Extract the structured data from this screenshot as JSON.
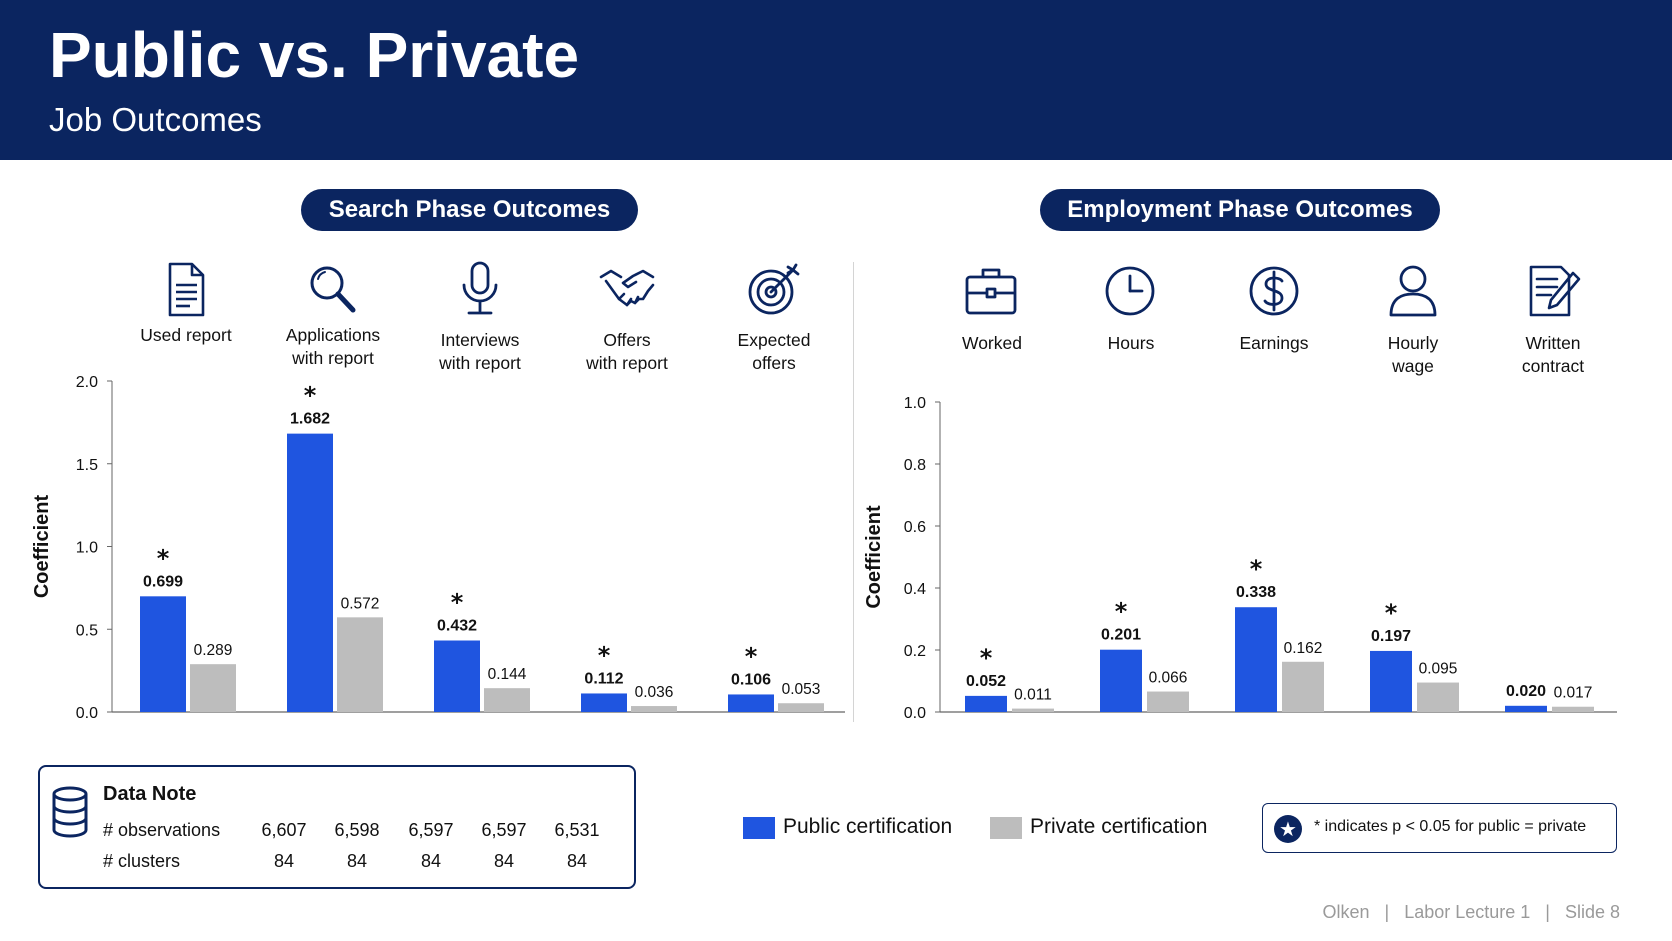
{
  "header": {
    "title": "Public vs. Private",
    "subtitle": "Job Outcomes"
  },
  "panels": {
    "search": {
      "heading": "Search Phase Outcomes"
    },
    "employment": {
      "heading": "Employment Phase Outcomes"
    }
  },
  "colors": {
    "header_bg": "#0b2560",
    "public": "#1f55e0",
    "private": "#bdbdbd"
  },
  "chart_data": [
    {
      "type": "bar",
      "title": "Search Phase Outcomes",
      "ylabel": "Coefficient",
      "ylim": [
        0,
        2.0
      ],
      "yticks": [
        "0.0",
        "0.5",
        "1.0",
        "1.5",
        "2.0"
      ],
      "categories": [
        {
          "lines": [
            "Used report"
          ],
          "icon": "document-icon"
        },
        {
          "lines": [
            "Applications",
            "with report"
          ],
          "icon": "magnifier-icon"
        },
        {
          "lines": [
            "Interviews",
            "with report"
          ],
          "icon": "microphone-icon"
        },
        {
          "lines": [
            "Offers",
            "with report"
          ],
          "icon": "handshake-icon"
        },
        {
          "lines": [
            "Expected",
            "offers"
          ],
          "icon": "target-icon"
        }
      ],
      "series": [
        {
          "name": "Public certification",
          "values": [
            0.699,
            1.682,
            0.432,
            0.112,
            0.106
          ],
          "labels": [
            "0.699",
            "1.682",
            "0.432",
            "0.112",
            "0.106"
          ]
        },
        {
          "name": "Private certification",
          "values": [
            0.289,
            0.572,
            0.144,
            0.036,
            0.053
          ],
          "labels": [
            "0.289",
            "0.572",
            "0.144",
            "0.036",
            "0.053"
          ]
        }
      ],
      "significant": [
        true,
        true,
        true,
        true,
        true
      ],
      "grid": false
    },
    {
      "type": "bar",
      "title": "Employment Phase Outcomes",
      "ylabel": "Coefficient",
      "ylim": [
        0,
        1.0
      ],
      "yticks": [
        "0.0",
        "0.2",
        "0.4",
        "0.6",
        "0.8",
        "1.0"
      ],
      "categories": [
        {
          "lines": [
            "Worked"
          ],
          "icon": "briefcase-icon"
        },
        {
          "lines": [
            "Hours"
          ],
          "icon": "clock-icon"
        },
        {
          "lines": [
            "Earnings"
          ],
          "icon": "dollar-icon"
        },
        {
          "lines": [
            "Hourly",
            "wage"
          ],
          "icon": "person-icon"
        },
        {
          "lines": [
            "Written",
            "contract"
          ],
          "icon": "contract-icon"
        }
      ],
      "series": [
        {
          "name": "Public certification",
          "values": [
            0.052,
            0.201,
            0.338,
            0.197,
            0.02
          ],
          "labels": [
            "0.052",
            "0.201",
            "0.338",
            "0.197",
            "0.020"
          ]
        },
        {
          "name": "Private certification",
          "values": [
            0.011,
            0.066,
            0.162,
            0.095,
            0.017
          ],
          "labels": [
            "0.011",
            "0.066",
            "0.162",
            "0.095",
            "0.017"
          ]
        }
      ],
      "significant": [
        true,
        true,
        true,
        true,
        false
      ],
      "grid": false
    }
  ],
  "data_note": {
    "title": "Data Note",
    "icon": "database-icon",
    "observations_label": "# observations",
    "observations": [
      "6,607",
      "6,598",
      "6,597",
      "6,597",
      "6,531"
    ],
    "clusters_label": "# clusters",
    "clusters": [
      "84",
      "84",
      "84",
      "84",
      "84"
    ]
  },
  "legend": {
    "public": "Public certification",
    "private": "Private certification"
  },
  "significance_note": {
    "symbol": "★",
    "text": "* indicates p < 0.05 for public = private"
  },
  "footer": {
    "text": "Olken   |   Labor Lecture 1   |   Slide 8"
  }
}
